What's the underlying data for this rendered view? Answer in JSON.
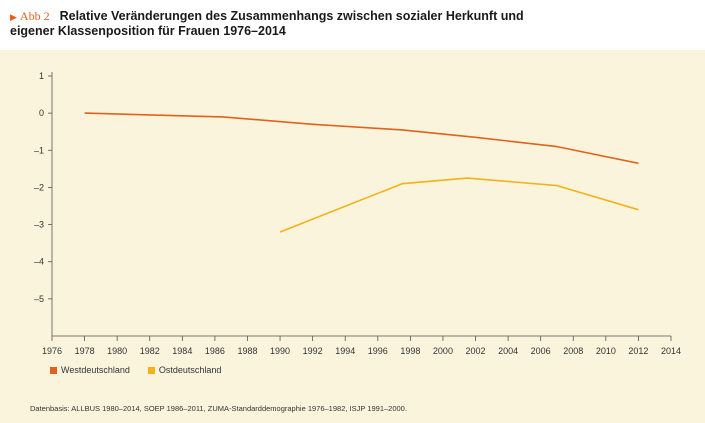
{
  "figure": {
    "marker_label": "Abb 2",
    "title_line1": "Relative Veränderungen des Zusammenhangs zwischen sozialer Herkunft und",
    "title_line2": "eigener Klassenposition für Frauen 1976–2014",
    "source": "Datenbasis: ALLBUS 1980–2014, SOEP 1986–2011, ZUMA-Standarddemographie 1976–1982, ISJP 1991–2000.",
    "panel_color": "#fbf4dc"
  },
  "chart_data": {
    "type": "line",
    "xlim": [
      1976,
      2014
    ],
    "ylim": [
      -6,
      1
    ],
    "x_ticks": [
      1976,
      1978,
      1980,
      1982,
      1984,
      1986,
      1988,
      1990,
      1992,
      1994,
      1996,
      1998,
      2000,
      2002,
      2004,
      2006,
      2008,
      2010,
      2012,
      2014
    ],
    "x_tick_labels": [
      "1976",
      "1978",
      "1980",
      "1982",
      "1984",
      "1986",
      "1988",
      "1990",
      "1992",
      "1994",
      "1996",
      "1998",
      "2000",
      "2002",
      "2004",
      "2006",
      "2008",
      "2010",
      "2012",
      "2014"
    ],
    "y_ticks": [
      1,
      0,
      -1,
      -2,
      -3,
      -4,
      -5
    ],
    "y_tick_labels": [
      "1",
      "0",
      "–1",
      "–2",
      "–3",
      "–4",
      "–5"
    ],
    "grid": false,
    "legend_position": "bottom-left",
    "series": [
      {
        "name": "Westdeutschland",
        "color": "#e0621e",
        "points": [
          {
            "x": 1978,
            "y": 0.0
          },
          {
            "x": 1986.5,
            "y": -0.1
          },
          {
            "x": 1992,
            "y": -0.3
          },
          {
            "x": 1997.5,
            "y": -0.45
          },
          {
            "x": 2002,
            "y": -0.65
          },
          {
            "x": 2007,
            "y": -0.9
          },
          {
            "x": 2012,
            "y": -1.35
          }
        ]
      },
      {
        "name": "Ostdeutschland",
        "color": "#f2b21a",
        "points": [
          {
            "x": 1990,
            "y": -3.2
          },
          {
            "x": 1997.5,
            "y": -1.9
          },
          {
            "x": 2001.5,
            "y": -1.75
          },
          {
            "x": 2007,
            "y": -1.95
          },
          {
            "x": 2012,
            "y": -2.6
          }
        ]
      }
    ]
  }
}
